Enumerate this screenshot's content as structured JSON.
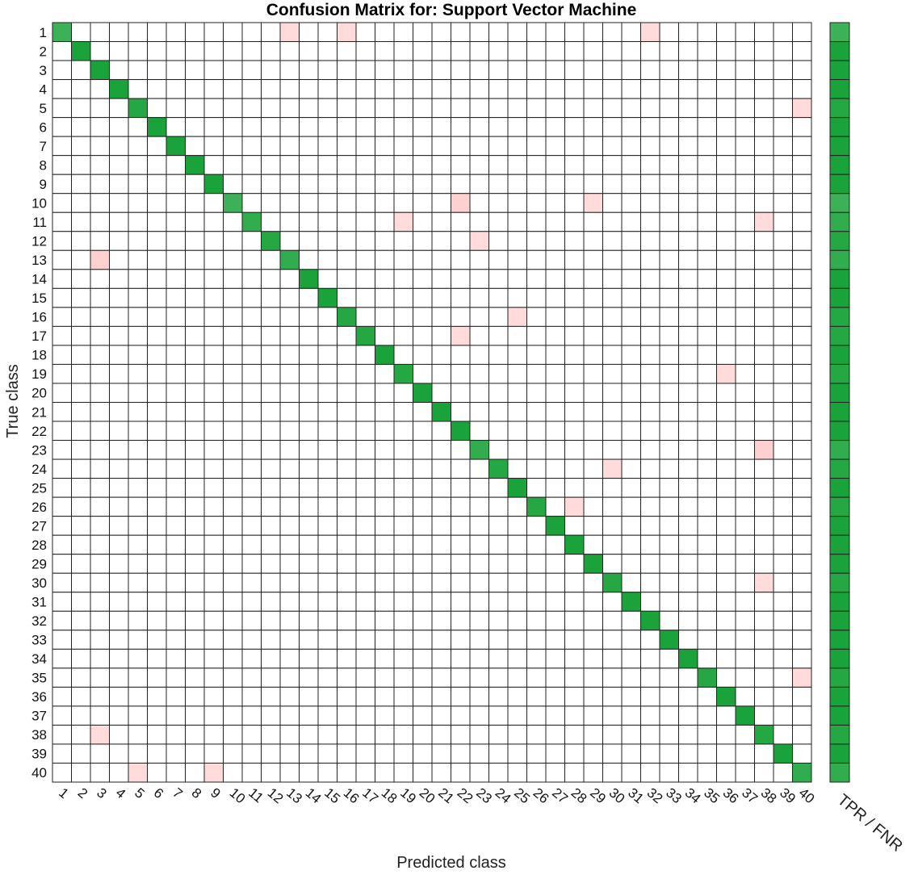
{
  "chart_data": {
    "type": "heatmap",
    "title": "Confusion Matrix for: Support Vector Machine",
    "xlabel": "Predicted class",
    "ylabel": "True class",
    "summary_label": "TPR / FNR",
    "n_classes": 40,
    "classes": [
      "1",
      "2",
      "3",
      "4",
      "5",
      "6",
      "7",
      "8",
      "9",
      "10",
      "11",
      "12",
      "13",
      "14",
      "15",
      "16",
      "17",
      "18",
      "19",
      "20",
      "21",
      "22",
      "23",
      "24",
      "25",
      "26",
      "27",
      "28",
      "29",
      "30",
      "31",
      "32",
      "33",
      "34",
      "35",
      "36",
      "37",
      "38",
      "39",
      "40"
    ],
    "diagonal_accuracy": [
      0.7,
      1.0,
      1.0,
      1.0,
      0.9,
      1.0,
      1.0,
      1.0,
      1.0,
      0.7,
      0.8,
      0.9,
      0.8,
      1.0,
      1.0,
      0.9,
      0.9,
      1.0,
      0.9,
      1.0,
      1.0,
      1.0,
      0.8,
      0.9,
      1.0,
      0.9,
      1.0,
      1.0,
      1.0,
      0.9,
      1.0,
      1.0,
      1.0,
      1.0,
      0.9,
      1.0,
      1.0,
      0.9,
      1.0,
      0.8
    ],
    "off_diagonal": [
      {
        "true": 1,
        "pred": 13,
        "value": 0.1
      },
      {
        "true": 1,
        "pred": 16,
        "value": 0.1
      },
      {
        "true": 1,
        "pred": 32,
        "value": 0.1
      },
      {
        "true": 5,
        "pred": 40,
        "value": 0.1
      },
      {
        "true": 10,
        "pred": 22,
        "value": 0.2
      },
      {
        "true": 10,
        "pred": 29,
        "value": 0.1
      },
      {
        "true": 11,
        "pred": 19,
        "value": 0.1
      },
      {
        "true": 11,
        "pred": 38,
        "value": 0.1
      },
      {
        "true": 12,
        "pred": 23,
        "value": 0.1
      },
      {
        "true": 13,
        "pred": 3,
        "value": 0.2
      },
      {
        "true": 16,
        "pred": 25,
        "value": 0.1
      },
      {
        "true": 17,
        "pred": 22,
        "value": 0.1
      },
      {
        "true": 19,
        "pred": 36,
        "value": 0.1
      },
      {
        "true": 23,
        "pred": 38,
        "value": 0.2
      },
      {
        "true": 24,
        "pred": 30,
        "value": 0.1
      },
      {
        "true": 26,
        "pred": 28,
        "value": 0.1
      },
      {
        "true": 30,
        "pred": 38,
        "value": 0.1
      },
      {
        "true": 35,
        "pred": 40,
        "value": 0.1
      },
      {
        "true": 38,
        "pred": 3,
        "value": 0.1
      },
      {
        "true": 40,
        "pred": 5,
        "value": 0.1
      },
      {
        "true": 40,
        "pred": 9,
        "value": 0.1
      }
    ],
    "colors": {
      "correct": "#1aa33a",
      "error": "#ff8a8a",
      "background": "#ffffff",
      "grid": "#222222"
    }
  }
}
